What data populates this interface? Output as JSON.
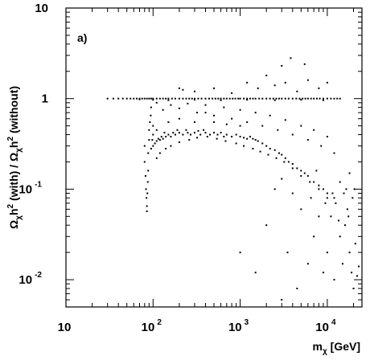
{
  "chart_data": {
    "type": "scatter",
    "panel_label": "a)",
    "xlabel": {
      "symbol": "m",
      "subscript": "χ",
      "unit": "[GeV]"
    },
    "ylabel": {
      "parts": [
        {
          "text": "Ω",
          "style": "normal"
        },
        {
          "text": "χ",
          "style": "sub"
        },
        {
          "text": "h",
          "style": "normal"
        },
        {
          "text": "2",
          "style": "sup"
        },
        {
          "text": " (with) / Ω",
          "style": "normal"
        },
        {
          "text": "χ",
          "style": "sub"
        },
        {
          "text": "h",
          "style": "normal"
        },
        {
          "text": "2",
          "style": "sup"
        },
        {
          "text": " (without)",
          "style": "normal"
        }
      ]
    },
    "x_scale": "log",
    "y_scale": "log",
    "xlim": [
      10,
      25000
    ],
    "ylim": [
      0.005,
      10
    ],
    "x_ticks": [
      {
        "value": 10,
        "base": "10",
        "exp": ""
      },
      {
        "value": 100,
        "base": "10",
        "exp": "2"
      },
      {
        "value": 1000,
        "base": "10",
        "exp": "3"
      },
      {
        "value": 10000,
        "base": "10",
        "exp": "4"
      }
    ],
    "y_ticks": [
      {
        "value": 10,
        "base": "10",
        "exp": ""
      },
      {
        "value": 1,
        "base": "1",
        "exp": ""
      },
      {
        "value": 0.1,
        "base": "10",
        "exp": "-1"
      },
      {
        "value": 0.01,
        "base": "10",
        "exp": "-2"
      }
    ],
    "grid": false,
    "marker_color": "#000000",
    "series": [
      {
        "points": [
          [
            30,
            1.0
          ],
          [
            35,
            1.0
          ],
          [
            40,
            1.0
          ],
          [
            45,
            1.0
          ],
          [
            50,
            1.0
          ],
          [
            55,
            1.0
          ],
          [
            60,
            1.0
          ],
          [
            65,
            1.0
          ],
          [
            70,
            1.0
          ],
          [
            75,
            1.0
          ],
          [
            80,
            1.0
          ],
          [
            85,
            1.0
          ],
          [
            90,
            1.0
          ],
          [
            95,
            1.0
          ],
          [
            100,
            1.0
          ],
          [
            110,
            1.0
          ],
          [
            120,
            1.0
          ],
          [
            130,
            1.0
          ],
          [
            140,
            1.0
          ],
          [
            150,
            1.0
          ],
          [
            165,
            1.0
          ],
          [
            180,
            1.0
          ],
          [
            200,
            1.0
          ],
          [
            220,
            1.0
          ],
          [
            240,
            1.0
          ],
          [
            260,
            1.0
          ],
          [
            280,
            1.0
          ],
          [
            300,
            1.0
          ],
          [
            330,
            1.0
          ],
          [
            360,
            1.0
          ],
          [
            400,
            1.0
          ],
          [
            440,
            1.0
          ],
          [
            480,
            1.0
          ],
          [
            520,
            1.0
          ],
          [
            560,
            1.0
          ],
          [
            600,
            1.0
          ],
          [
            650,
            1.0
          ],
          [
            700,
            1.0
          ],
          [
            760,
            1.0
          ],
          [
            820,
            1.0
          ],
          [
            880,
            1.0
          ],
          [
            950,
            1.0
          ],
          [
            1000,
            1.0
          ],
          [
            1100,
            1.0
          ],
          [
            1200,
            1.0
          ],
          [
            1300,
            1.0
          ],
          [
            1400,
            1.0
          ],
          [
            1500,
            1.0
          ],
          [
            1650,
            1.0
          ],
          [
            1800,
            1.0
          ],
          [
            2000,
            1.0
          ],
          [
            2200,
            1.0
          ],
          [
            2400,
            1.0
          ],
          [
            2600,
            1.0
          ],
          [
            2800,
            1.0
          ],
          [
            3000,
            1.0
          ],
          [
            3300,
            1.0
          ],
          [
            3600,
            1.0
          ],
          [
            4000,
            1.0
          ],
          [
            4400,
            1.0
          ],
          [
            4800,
            1.0
          ],
          [
            5200,
            1.0
          ],
          [
            5600,
            1.0
          ],
          [
            6000,
            1.0
          ],
          [
            6500,
            1.0
          ],
          [
            7000,
            1.0
          ],
          [
            7600,
            1.0
          ],
          [
            8200,
            1.0
          ],
          [
            9000,
            1.0
          ],
          [
            10000,
            1.0
          ],
          [
            11000,
            1.0
          ],
          [
            12000,
            1.0
          ],
          [
            13000,
            1.0
          ],
          [
            14000,
            1.0
          ],
          [
            70,
            0.98
          ],
          [
            100,
            0.97
          ],
          [
            150,
            0.96
          ],
          [
            300,
            0.97
          ],
          [
            600,
            0.96
          ],
          [
            1200,
            0.97
          ],
          [
            2500,
            0.96
          ],
          [
            5000,
            0.97
          ],
          [
            9000,
            0.96
          ],
          [
            80,
            0.3
          ],
          [
            80,
            0.2
          ],
          [
            82,
            0.14
          ],
          [
            83,
            0.1
          ],
          [
            84,
            0.08
          ],
          [
            85,
            0.065
          ],
          [
            85,
            0.057
          ],
          [
            86,
            0.09
          ],
          [
            87,
            0.12
          ],
          [
            88,
            0.16
          ],
          [
            88,
            0.25
          ],
          [
            90,
            0.35
          ],
          [
            90,
            0.45
          ],
          [
            92,
            0.55
          ],
          [
            94,
            0.65
          ],
          [
            95,
            0.28
          ],
          [
            98,
            0.35
          ],
          [
            100,
            0.3
          ],
          [
            100,
            0.4
          ],
          [
            100,
            0.5
          ],
          [
            105,
            0.32
          ],
          [
            110,
            0.34
          ],
          [
            110,
            0.45
          ],
          [
            115,
            0.36
          ],
          [
            120,
            0.35
          ],
          [
            125,
            0.38
          ],
          [
            130,
            0.36
          ],
          [
            135,
            0.42
          ],
          [
            140,
            0.38
          ],
          [
            150,
            0.4
          ],
          [
            150,
            0.55
          ],
          [
            160,
            0.38
          ],
          [
            170,
            0.42
          ],
          [
            180,
            0.4
          ],
          [
            190,
            0.45
          ],
          [
            200,
            0.42
          ],
          [
            200,
            0.6
          ],
          [
            220,
            0.4
          ],
          [
            240,
            0.45
          ],
          [
            250,
            0.42
          ],
          [
            270,
            0.4
          ],
          [
            300,
            0.42
          ],
          [
            300,
            0.55
          ],
          [
            330,
            0.44
          ],
          [
            350,
            0.4
          ],
          [
            380,
            0.45
          ],
          [
            400,
            0.42
          ],
          [
            400,
            0.7
          ],
          [
            450,
            0.4
          ],
          [
            500,
            0.42
          ],
          [
            500,
            0.55
          ],
          [
            550,
            0.4
          ],
          [
            600,
            0.42
          ],
          [
            650,
            0.38
          ],
          [
            700,
            0.4
          ],
          [
            700,
            0.52
          ],
          [
            800,
            0.38
          ],
          [
            900,
            0.4
          ],
          [
            1000,
            0.38
          ],
          [
            1000,
            0.5
          ],
          [
            1100,
            0.37
          ],
          [
            1200,
            0.36
          ],
          [
            1300,
            0.38
          ],
          [
            1400,
            0.36
          ],
          [
            1500,
            0.35
          ],
          [
            1600,
            0.34
          ],
          [
            1800,
            0.32
          ],
          [
            2000,
            0.3
          ],
          [
            2200,
            0.28
          ],
          [
            2500,
            0.27
          ],
          [
            2800,
            0.25
          ],
          [
            3000,
            0.24
          ],
          [
            3300,
            0.22
          ],
          [
            3600,
            0.2
          ],
          [
            4000,
            0.19
          ],
          [
            4500,
            0.17
          ],
          [
            5000,
            0.16
          ],
          [
            5500,
            0.15
          ],
          [
            6000,
            0.14
          ],
          [
            7000,
            0.12
          ],
          [
            8000,
            0.11
          ],
          [
            9000,
            0.1
          ],
          [
            10000,
            0.09
          ],
          [
            12000,
            0.08
          ],
          [
            110,
            0.22
          ],
          [
            120,
            0.25
          ],
          [
            140,
            0.28
          ],
          [
            160,
            0.3
          ],
          [
            200,
            0.33
          ],
          [
            260,
            0.35
          ],
          [
            320,
            0.37
          ],
          [
            420,
            0.38
          ],
          [
            540,
            0.36
          ],
          [
            680,
            0.34
          ],
          [
            900,
            0.32
          ],
          [
            1100,
            0.3
          ],
          [
            1400,
            0.28
          ],
          [
            1700,
            0.26
          ],
          [
            2100,
            0.24
          ],
          [
            2600,
            0.22
          ],
          [
            3200,
            0.2
          ],
          [
            4000,
            0.17
          ],
          [
            5000,
            0.14
          ],
          [
            6300,
            0.12
          ],
          [
            8000,
            0.1
          ],
          [
            10000,
            0.08
          ],
          [
            95,
            0.8
          ],
          [
            110,
            0.9
          ],
          [
            130,
            0.75
          ],
          [
            160,
            0.85
          ],
          [
            200,
            0.78
          ],
          [
            250,
            0.88
          ],
          [
            320,
            0.7
          ],
          [
            400,
            0.85
          ],
          [
            500,
            0.65
          ],
          [
            650,
            0.8
          ],
          [
            800,
            0.6
          ],
          [
            1000,
            0.75
          ],
          [
            1200,
            0.55
          ],
          [
            1500,
            0.7
          ],
          [
            1800,
            0.5
          ],
          [
            2200,
            0.65
          ],
          [
            2700,
            0.45
          ],
          [
            3300,
            0.58
          ],
          [
            4000,
            0.4
          ],
          [
            5000,
            0.5
          ],
          [
            6000,
            0.35
          ],
          [
            7000,
            0.45
          ],
          [
            8500,
            0.3
          ],
          [
            10000,
            0.38
          ],
          [
            12000,
            0.25
          ],
          [
            200,
            1.3
          ],
          [
            220,
            1.25
          ],
          [
            300,
            1.2
          ],
          [
            500,
            1.3
          ],
          [
            800,
            1.15
          ],
          [
            1200,
            1.5
          ],
          [
            1600,
            1.3
          ],
          [
            2000,
            1.8
          ],
          [
            2500,
            1.4
          ],
          [
            3000,
            2.3
          ],
          [
            3300,
            1.5
          ],
          [
            3800,
            2.8
          ],
          [
            4500,
            1.2
          ],
          [
            5500,
            2.4
          ],
          [
            6000,
            1.6
          ],
          [
            8000,
            1.3
          ],
          [
            10000,
            1.5
          ],
          [
            1000,
            0.02
          ],
          [
            1500,
            0.012
          ],
          [
            2000,
            0.04
          ],
          [
            3000,
            0.006
          ],
          [
            3500,
            0.02
          ],
          [
            4500,
            0.008
          ],
          [
            6000,
            0.015
          ],
          [
            7000,
            0.03
          ],
          [
            9000,
            0.012
          ],
          [
            10000,
            0.02
          ],
          [
            12000,
            0.01
          ],
          [
            14000,
            0.03
          ],
          [
            15000,
            0.015
          ],
          [
            16000,
            0.04
          ],
          [
            17000,
            0.06
          ],
          [
            18000,
            0.02
          ],
          [
            19000,
            0.012
          ],
          [
            20000,
            0.008
          ],
          [
            21000,
            0.025
          ],
          [
            22000,
            0.011
          ],
          [
            11000,
            0.05
          ],
          [
            12500,
            0.07
          ],
          [
            13500,
            0.045
          ],
          [
            15500,
            0.09
          ],
          [
            17500,
            0.05
          ],
          [
            14000,
            0.12
          ],
          [
            16500,
            0.1
          ],
          [
            19500,
            0.08
          ],
          [
            20500,
            0.1
          ],
          [
            23000,
            0.014
          ],
          [
            5000,
            0.06
          ],
          [
            6500,
            0.08
          ],
          [
            8000,
            0.05
          ],
          [
            9500,
            0.07
          ],
          [
            11500,
            0.09
          ],
          [
            4000,
            0.09
          ],
          [
            3000,
            0.13
          ],
          [
            2500,
            0.1
          ],
          [
            7500,
            0.16
          ],
          [
            18000,
            0.15
          ]
        ]
      }
    ]
  }
}
